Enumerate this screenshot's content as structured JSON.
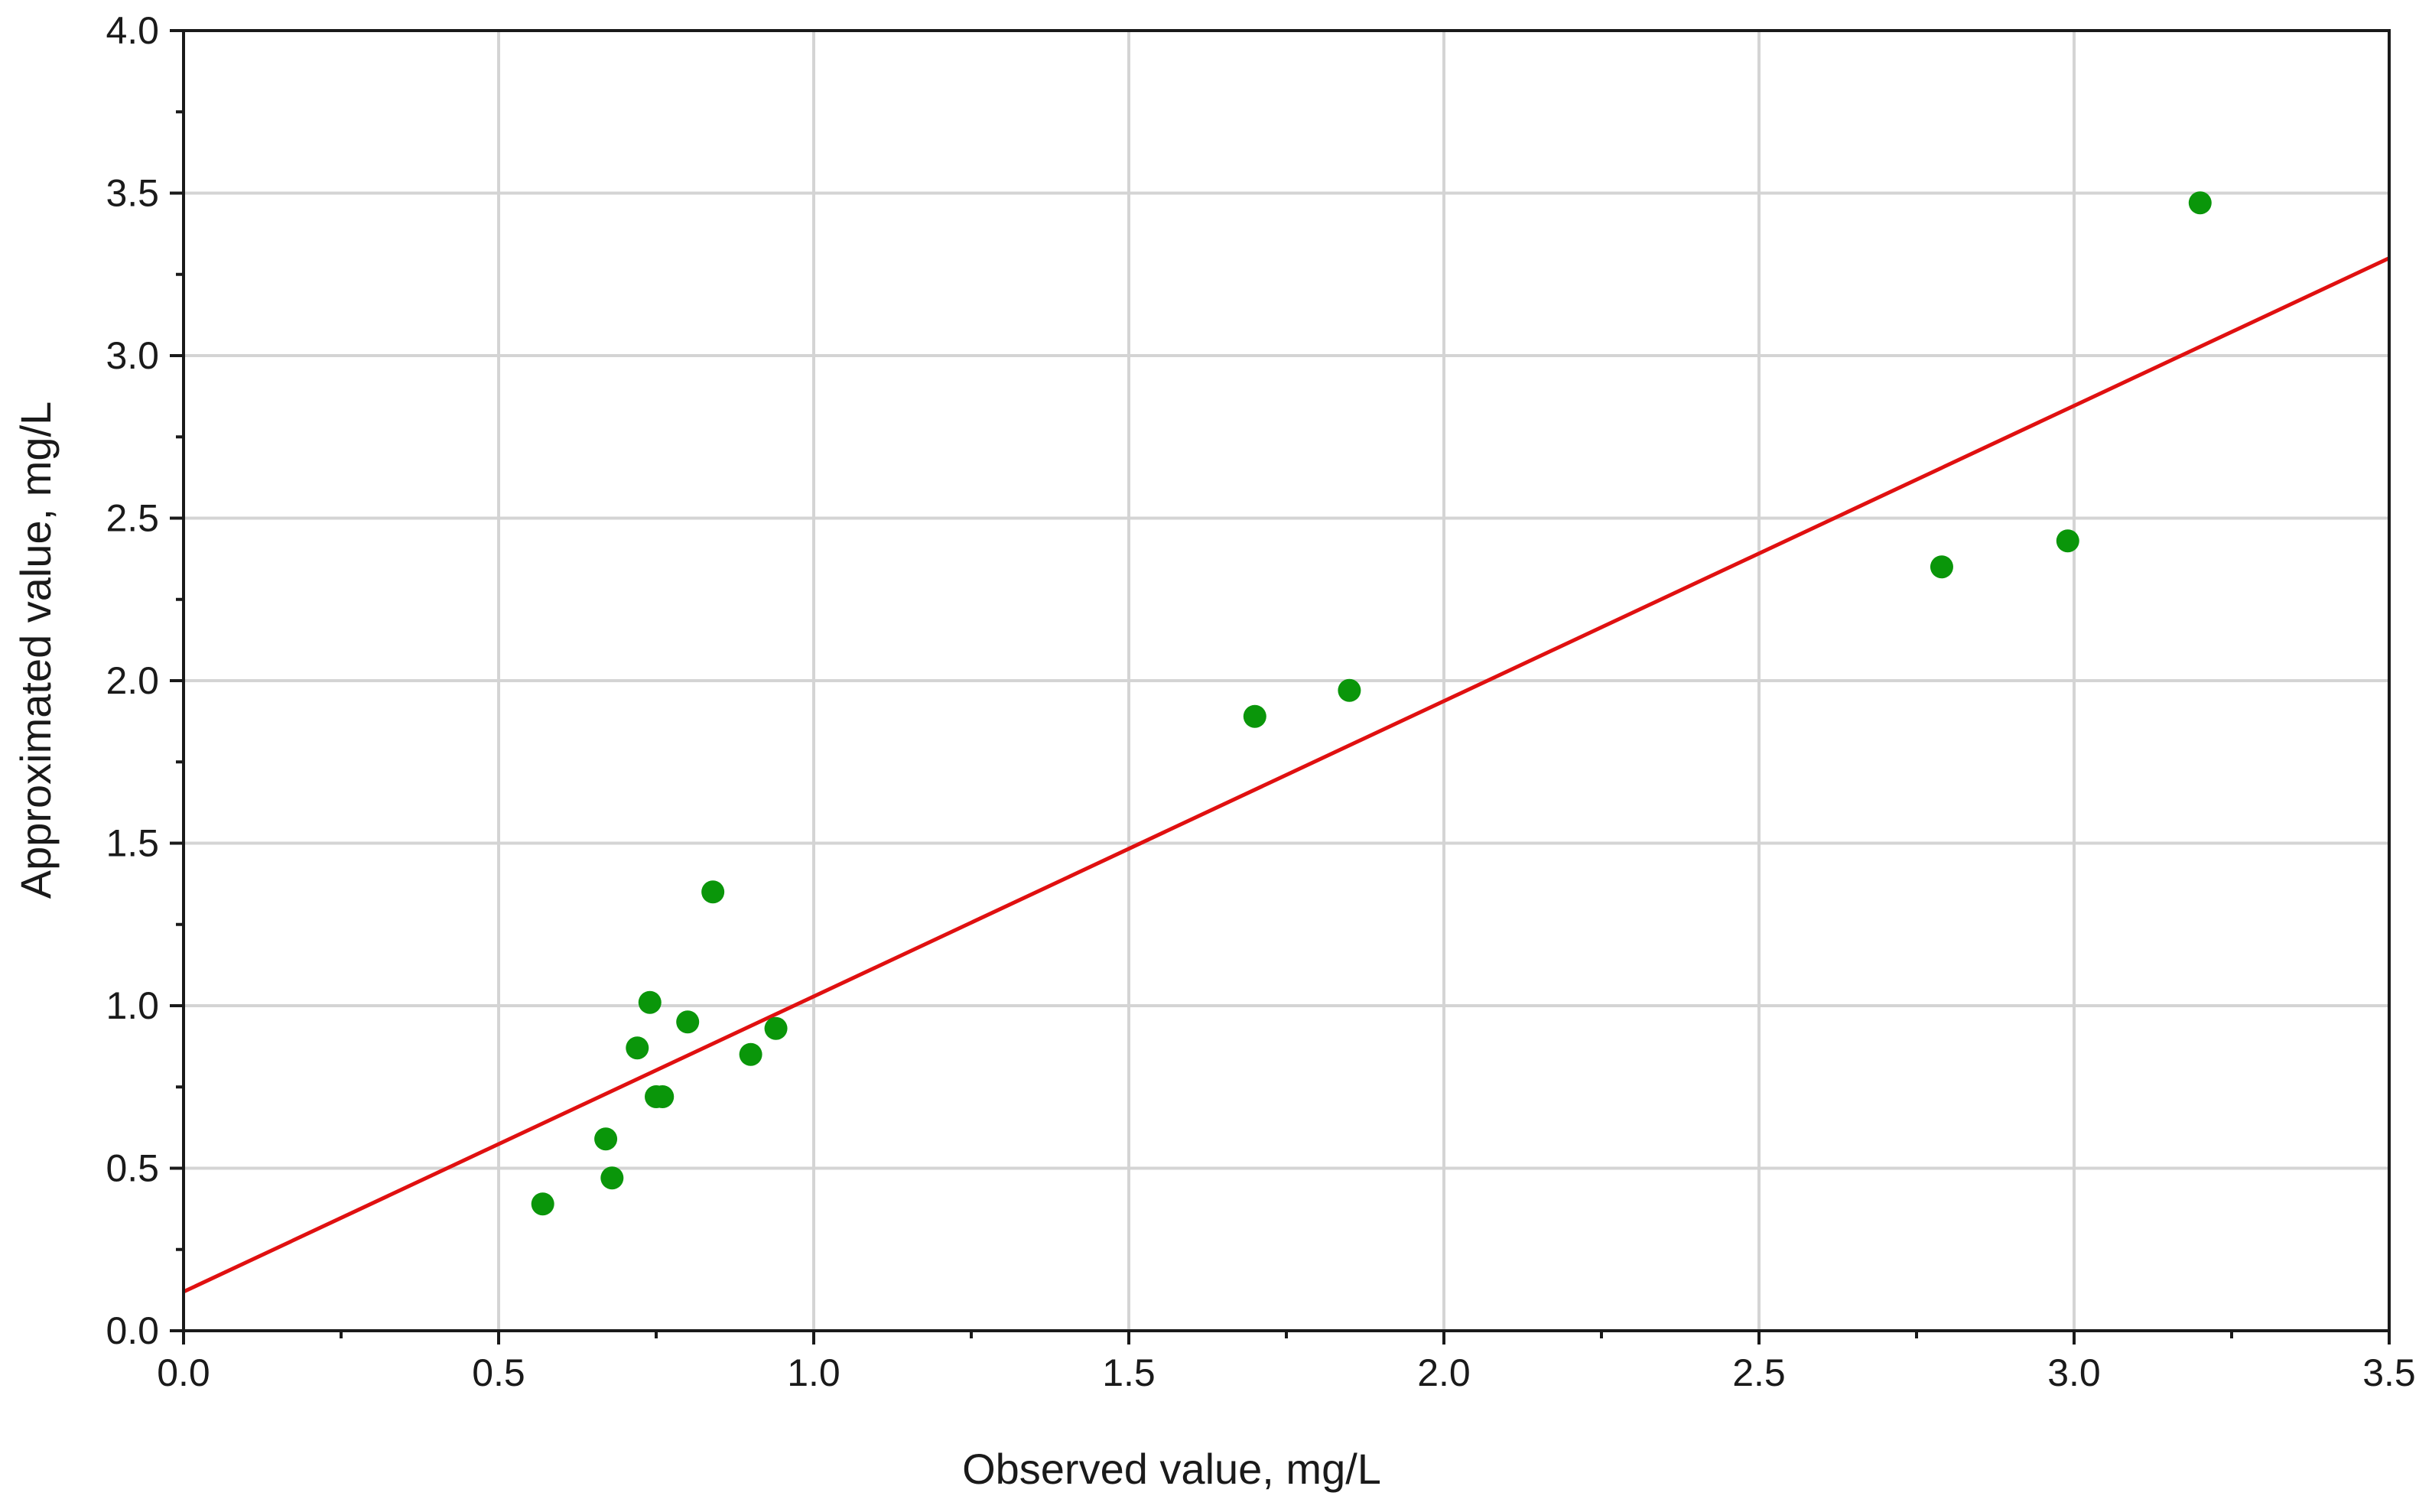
{
  "chart_data": {
    "type": "scatter",
    "title": "",
    "xlabel": "Observed value, mg/L",
    "ylabel": "Approximated value, mg/L",
    "xlim": [
      0.0,
      3.5
    ],
    "ylim": [
      0.0,
      4.0
    ],
    "x_ticks": [
      "0.0",
      "0.5",
      "1.0",
      "1.5",
      "2.0",
      "2.5",
      "3.0",
      "3.5"
    ],
    "y_ticks": [
      "0.0",
      "0.5",
      "1.0",
      "1.5",
      "2.0",
      "2.5",
      "3.0",
      "3.5",
      "4.0"
    ],
    "grid": true,
    "legend": "none",
    "colors": {
      "points": "#0a960a",
      "fit_line": "#e01010",
      "grid": "#d4d4d4",
      "axes": "#1a1a1a"
    },
    "series": [
      {
        "x": [
          0.57,
          0.67,
          0.68,
          0.72,
          0.74,
          0.75,
          0.76,
          0.8,
          0.84,
          0.9,
          0.94,
          1.7,
          1.85,
          2.79,
          2.99,
          3.2
        ],
        "y": [
          0.39,
          0.59,
          0.47,
          0.87,
          1.01,
          0.72,
          0.72,
          0.95,
          1.35,
          0.85,
          0.93,
          1.89,
          1.97,
          2.35,
          2.43,
          3.47
        ]
      }
    ],
    "fit_line": {
      "x": [
        0.0,
        3.5
      ],
      "y": [
        0.12,
        3.3
      ]
    }
  }
}
